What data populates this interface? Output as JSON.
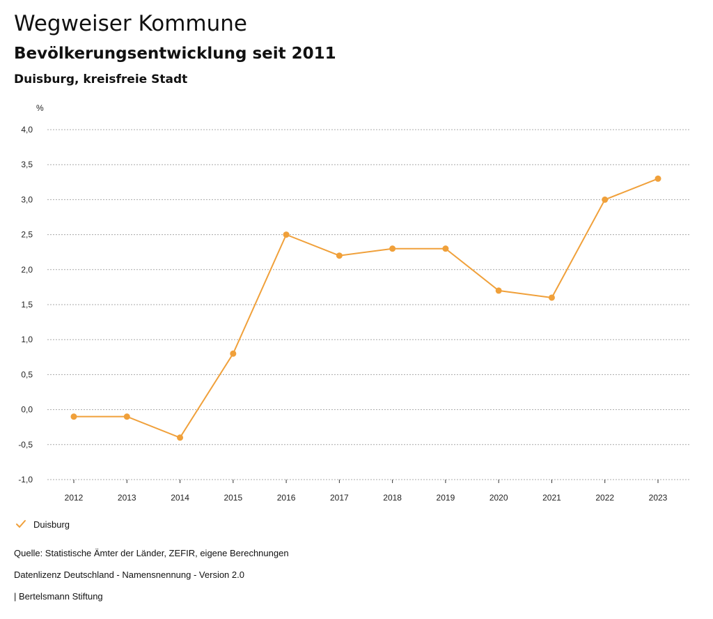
{
  "header": {
    "title": "Wegweiser Kommune",
    "subtitle": "Bevölkerungsentwicklung seit 2011",
    "region": "Duisburg, kreisfreie Stadt"
  },
  "colors": {
    "series": "#f0a03a",
    "grid": "#a8a8a8",
    "axis_text": "#222222"
  },
  "chart_data": {
    "type": "line",
    "title": "Bevölkerungsentwicklung seit 2011",
    "ylabel": "%",
    "xlabel": "",
    "categories": [
      "2012",
      "2013",
      "2014",
      "2015",
      "2016",
      "2017",
      "2018",
      "2019",
      "2020",
      "2021",
      "2022",
      "2023"
    ],
    "series": [
      {
        "name": "Duisburg",
        "values": [
          -0.1,
          -0.1,
          -0.4,
          0.8,
          2.5,
          2.2,
          2.3,
          2.3,
          1.7,
          1.6,
          3.0,
          3.3
        ]
      }
    ],
    "ylim": [
      -1.0,
      4.0
    ],
    "yticks": [
      -1.0,
      -0.5,
      0.0,
      0.5,
      1.0,
      1.5,
      2.0,
      2.5,
      3.0,
      3.5,
      4.0
    ],
    "ytick_labels": [
      "-1,0",
      "-0,5",
      "0,0",
      "0,5",
      "1,0",
      "1,5",
      "2,0",
      "2,5",
      "3,0",
      "3,5",
      "4,0"
    ],
    "grid": true,
    "legend": "bottom-left"
  },
  "legend": {
    "label": "Duisburg"
  },
  "footer": {
    "source": "Quelle: Statistische Ämter der Länder, ZEFIR, eigene Berechnungen",
    "license": "Datenlizenz Deutschland - Namensnennung - Version 2.0",
    "publisher": "| Bertelsmann Stiftung"
  }
}
